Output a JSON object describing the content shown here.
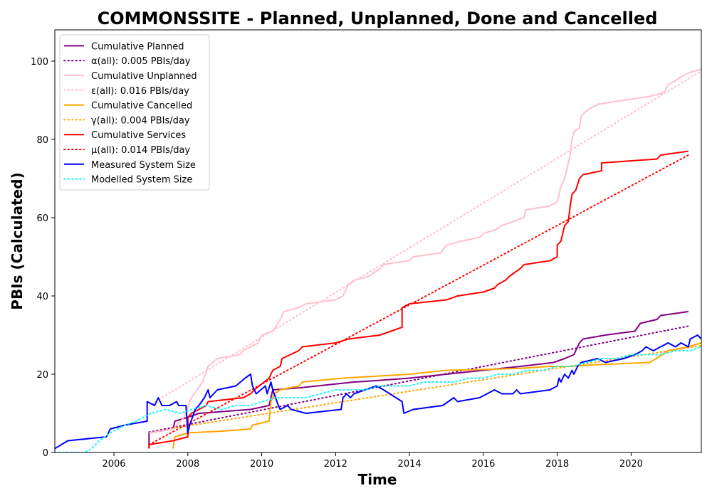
{
  "chart_data": {
    "type": "line",
    "title": "COMMONSSITE - Planned, Unplanned, Done  and Cancelled",
    "xlabel": "Time",
    "ylabel": "PBIs (Calculated)",
    "xlim": [
      2004.4,
      2021.9
    ],
    "ylim": [
      0,
      108
    ],
    "xticks": [
      2006,
      2008,
      2010,
      2012,
      2014,
      2016,
      2018,
      2020
    ],
    "yticks": [
      0,
      20,
      40,
      60,
      80,
      100
    ],
    "legend_position": "upper left",
    "grid": false,
    "series": [
      {
        "name": "Cumulative Planned",
        "color": "#800080",
        "style": "solid",
        "points": [
          [
            2006.95,
            1
          ],
          [
            2006.95,
            5
          ],
          [
            2007.6,
            6
          ],
          [
            2007.65,
            8
          ],
          [
            2008.0,
            9
          ],
          [
            2008.3,
            10
          ],
          [
            2009.0,
            10.5
          ],
          [
            2009.7,
            11
          ],
          [
            2010.2,
            12
          ],
          [
            2010.3,
            16
          ],
          [
            2011.0,
            16.5
          ],
          [
            2012.0,
            17.5
          ],
          [
            2012.5,
            18
          ],
          [
            2013.0,
            18.3
          ],
          [
            2014.0,
            19
          ],
          [
            2015.0,
            20
          ],
          [
            2016.0,
            21
          ],
          [
            2017.0,
            22
          ],
          [
            2017.9,
            23
          ],
          [
            2018.2,
            24
          ],
          [
            2018.45,
            25
          ],
          [
            2018.6,
            28
          ],
          [
            2018.7,
            29
          ],
          [
            2019.3,
            30
          ],
          [
            2020.1,
            31
          ],
          [
            2020.25,
            33
          ],
          [
            2020.7,
            34
          ],
          [
            2020.8,
            35
          ],
          [
            2021.55,
            36
          ]
        ]
      },
      {
        "name": "α(all): 0.005 PBIs/day",
        "color": "#800080",
        "style": "dotted",
        "points": [
          [
            2006.95,
            5.2
          ],
          [
            2021.55,
            32.3
          ]
        ]
      },
      {
        "name": "Cumulative Unplanned",
        "color": "#ffc0cb",
        "style": "solid",
        "points": [
          [
            2006.95,
            5
          ],
          [
            2007.6,
            6
          ],
          [
            2007.9,
            9
          ],
          [
            2008.1,
            14
          ],
          [
            2008.4,
            18
          ],
          [
            2008.55,
            22
          ],
          [
            2008.8,
            24
          ],
          [
            2009.4,
            25
          ],
          [
            2009.5,
            26
          ],
          [
            2009.9,
            28
          ],
          [
            2010.0,
            30
          ],
          [
            2010.3,
            31
          ],
          [
            2010.5,
            34
          ],
          [
            2010.6,
            36
          ],
          [
            2011.0,
            37
          ],
          [
            2011.2,
            38
          ],
          [
            2012.0,
            39
          ],
          [
            2012.2,
            40
          ],
          [
            2012.35,
            43
          ],
          [
            2012.5,
            44
          ],
          [
            2012.9,
            45
          ],
          [
            2013.2,
            47
          ],
          [
            2013.3,
            48
          ],
          [
            2013.6,
            48.5
          ],
          [
            2014.0,
            49
          ],
          [
            2014.1,
            50
          ],
          [
            2014.85,
            51
          ],
          [
            2015.0,
            53
          ],
          [
            2015.4,
            54
          ],
          [
            2015.9,
            55
          ],
          [
            2016.0,
            56
          ],
          [
            2016.35,
            57
          ],
          [
            2016.5,
            58
          ],
          [
            2016.8,
            59
          ],
          [
            2017.1,
            60
          ],
          [
            2017.15,
            62
          ],
          [
            2017.8,
            63
          ],
          [
            2018.0,
            64
          ],
          [
            2018.05,
            66
          ],
          [
            2018.1,
            68
          ],
          [
            2018.2,
            70
          ],
          [
            2018.3,
            74
          ],
          [
            2018.35,
            76
          ],
          [
            2018.4,
            80
          ],
          [
            2018.45,
            82
          ],
          [
            2018.6,
            83
          ],
          [
            2018.65,
            86
          ],
          [
            2018.75,
            87
          ],
          [
            2018.9,
            88
          ],
          [
            2019.0,
            88.5
          ],
          [
            2019.1,
            89
          ],
          [
            2020.5,
            91
          ],
          [
            2020.9,
            92
          ],
          [
            2021.0,
            94
          ],
          [
            2021.2,
            95
          ],
          [
            2021.35,
            96
          ],
          [
            2021.55,
            97
          ],
          [
            2021.9,
            98
          ]
        ]
      },
      {
        "name": "ε(all): 0.016 PBIs/day",
        "color": "#ffc0cb",
        "style": "dotted",
        "points": [
          [
            2006.95,
            12
          ],
          [
            2021.9,
            97.5
          ]
        ]
      },
      {
        "name": "Cumulative Cancelled",
        "color": "#ffa500",
        "style": "solid",
        "points": [
          [
            2007.6,
            1
          ],
          [
            2007.65,
            4
          ],
          [
            2008.0,
            5
          ],
          [
            2009.0,
            5.5
          ],
          [
            2009.7,
            6
          ],
          [
            2009.75,
            7
          ],
          [
            2010.2,
            8
          ],
          [
            2010.25,
            13
          ],
          [
            2010.35,
            15
          ],
          [
            2010.5,
            16
          ],
          [
            2011.0,
            17
          ],
          [
            2011.1,
            18
          ],
          [
            2012.2,
            19
          ],
          [
            2014.0,
            20
          ],
          [
            2015.0,
            21
          ],
          [
            2016.0,
            21.2
          ],
          [
            2017.0,
            21.5
          ],
          [
            2017.8,
            22
          ],
          [
            2018.4,
            22
          ],
          [
            2019.0,
            22.4
          ],
          [
            2020.5,
            23
          ],
          [
            2020.85,
            25
          ],
          [
            2021.0,
            26
          ],
          [
            2021.55,
            27
          ],
          [
            2021.9,
            28
          ]
        ]
      },
      {
        "name": "γ(all): 0.004 PBIs/day",
        "color": "#ffa500",
        "style": "dotted",
        "points": [
          [
            2007.6,
            6.2
          ],
          [
            2021.9,
            27.3
          ]
        ]
      },
      {
        "name": "Cumulative Services",
        "color": "#ff0000",
        "style": "solid",
        "points": [
          [
            2006.95,
            1
          ],
          [
            2006.95,
            2
          ],
          [
            2007.6,
            3
          ],
          [
            2008.0,
            4
          ],
          [
            2008.0,
            9
          ],
          [
            2008.1,
            10
          ],
          [
            2008.5,
            12
          ],
          [
            2008.55,
            13
          ],
          [
            2009.5,
            14
          ],
          [
            2009.7,
            15
          ],
          [
            2009.8,
            16
          ],
          [
            2010.2,
            19
          ],
          [
            2010.3,
            21
          ],
          [
            2010.5,
            22
          ],
          [
            2010.55,
            24
          ],
          [
            2011.0,
            26
          ],
          [
            2011.1,
            27
          ],
          [
            2012.0,
            28
          ],
          [
            2012.35,
            29
          ],
          [
            2013.2,
            30
          ],
          [
            2013.8,
            32
          ],
          [
            2013.8,
            37
          ],
          [
            2014.0,
            38
          ],
          [
            2015.0,
            39
          ],
          [
            2015.3,
            40
          ],
          [
            2016.0,
            41
          ],
          [
            2016.3,
            42
          ],
          [
            2016.4,
            43
          ],
          [
            2016.6,
            44
          ],
          [
            2016.7,
            45
          ],
          [
            2017.0,
            47
          ],
          [
            2017.1,
            48
          ],
          [
            2017.8,
            49
          ],
          [
            2018.0,
            50
          ],
          [
            2018.0,
            53
          ],
          [
            2018.1,
            54
          ],
          [
            2018.2,
            58
          ],
          [
            2018.3,
            59
          ],
          [
            2018.35,
            63
          ],
          [
            2018.4,
            66
          ],
          [
            2018.5,
            67
          ],
          [
            2018.6,
            70
          ],
          [
            2018.7,
            71
          ],
          [
            2019.2,
            72
          ],
          [
            2019.2,
            74
          ],
          [
            2020.7,
            75
          ],
          [
            2020.8,
            76
          ],
          [
            2021.55,
            77
          ]
        ]
      },
      {
        "name": "μ(all): 0.014 PBIs/day",
        "color": "#ff0000",
        "style": "dotted",
        "points": [
          [
            2006.95,
            2
          ],
          [
            2021.55,
            76
          ]
        ]
      },
      {
        "name": "Measured System Size",
        "color": "#0000ff",
        "style": "solid",
        "points": [
          [
            2004.4,
            1
          ],
          [
            2004.75,
            3
          ],
          [
            2005.8,
            4
          ],
          [
            2005.9,
            6
          ],
          [
            2006.3,
            7
          ],
          [
            2006.9,
            8
          ],
          [
            2006.9,
            13
          ],
          [
            2007.1,
            12
          ],
          [
            2007.2,
            14
          ],
          [
            2007.3,
            12
          ],
          [
            2007.5,
            12
          ],
          [
            2007.7,
            13
          ],
          [
            2007.75,
            12
          ],
          [
            2007.95,
            12
          ],
          [
            2008.0,
            5
          ],
          [
            2008.05,
            7
          ],
          [
            2008.2,
            11
          ],
          [
            2008.3,
            12
          ],
          [
            2008.45,
            14
          ],
          [
            2008.55,
            16
          ],
          [
            2008.6,
            14
          ],
          [
            2008.8,
            16
          ],
          [
            2009.3,
            17
          ],
          [
            2009.55,
            19
          ],
          [
            2009.7,
            20
          ],
          [
            2009.75,
            17
          ],
          [
            2009.85,
            15
          ],
          [
            2010.1,
            17
          ],
          [
            2010.15,
            15
          ],
          [
            2010.25,
            18
          ],
          [
            2010.3,
            16
          ],
          [
            2010.45,
            12
          ],
          [
            2010.5,
            11
          ],
          [
            2010.7,
            12
          ],
          [
            2010.8,
            11
          ],
          [
            2011.2,
            10
          ],
          [
            2012.15,
            11
          ],
          [
            2012.2,
            14
          ],
          [
            2012.3,
            15
          ],
          [
            2012.4,
            14
          ],
          [
            2012.5,
            15
          ],
          [
            2013.1,
            17
          ],
          [
            2013.3,
            16
          ],
          [
            2013.8,
            13
          ],
          [
            2013.85,
            10
          ],
          [
            2014.1,
            11
          ],
          [
            2014.9,
            12
          ],
          [
            2015.2,
            14
          ],
          [
            2015.3,
            13
          ],
          [
            2015.9,
            14
          ],
          [
            2016.1,
            15
          ],
          [
            2016.3,
            16
          ],
          [
            2016.5,
            15
          ],
          [
            2016.8,
            15
          ],
          [
            2016.9,
            16
          ],
          [
            2017.0,
            15
          ],
          [
            2017.8,
            16
          ],
          [
            2018.0,
            17
          ],
          [
            2018.05,
            19
          ],
          [
            2018.1,
            18
          ],
          [
            2018.2,
            20
          ],
          [
            2018.3,
            19
          ],
          [
            2018.4,
            21
          ],
          [
            2018.45,
            20
          ],
          [
            2018.55,
            22
          ],
          [
            2018.65,
            23
          ],
          [
            2019.1,
            24
          ],
          [
            2019.3,
            23
          ],
          [
            2019.8,
            24
          ],
          [
            2020.1,
            25
          ],
          [
            2020.3,
            26
          ],
          [
            2020.4,
            27
          ],
          [
            2020.6,
            26
          ],
          [
            2020.8,
            27
          ],
          [
            2021.0,
            28
          ],
          [
            2021.2,
            27
          ],
          [
            2021.35,
            28
          ],
          [
            2021.55,
            27
          ],
          [
            2021.6,
            29
          ],
          [
            2021.8,
            30
          ],
          [
            2021.9,
            29
          ]
        ]
      },
      {
        "name": "Modelled System Size",
        "color": "#00ffff",
        "style": "dotted",
        "points": [
          [
            2004.4,
            0
          ],
          [
            2005.2,
            0
          ],
          [
            2005.4,
            1
          ],
          [
            2005.6,
            3
          ],
          [
            2005.9,
            5
          ],
          [
            2006.3,
            7
          ],
          [
            2006.6,
            8
          ],
          [
            2007.0,
            10
          ],
          [
            2007.4,
            11
          ],
          [
            2007.8,
            10
          ],
          [
            2008.1,
            11
          ],
          [
            2008.5,
            12
          ],
          [
            2008.9,
            11
          ],
          [
            2009.3,
            12
          ],
          [
            2009.7,
            12
          ],
          [
            2010.0,
            13
          ],
          [
            2010.4,
            14
          ],
          [
            2010.8,
            14
          ],
          [
            2011.2,
            14
          ],
          [
            2011.6,
            15
          ],
          [
            2012.0,
            16
          ],
          [
            2012.4,
            16
          ],
          [
            2012.8,
            16
          ],
          [
            2013.2,
            17
          ],
          [
            2013.6,
            17
          ],
          [
            2014.0,
            17
          ],
          [
            2014.4,
            18
          ],
          [
            2014.8,
            18
          ],
          [
            2015.2,
            18
          ],
          [
            2015.6,
            19
          ],
          [
            2016.0,
            19
          ],
          [
            2016.4,
            20
          ],
          [
            2016.8,
            20
          ],
          [
            2017.2,
            21
          ],
          [
            2017.6,
            21
          ],
          [
            2018.0,
            22
          ],
          [
            2018.4,
            22
          ],
          [
            2018.8,
            23
          ],
          [
            2019.2,
            24
          ],
          [
            2019.6,
            24
          ],
          [
            2020.0,
            25
          ],
          [
            2020.4,
            25
          ],
          [
            2020.8,
            25
          ],
          [
            2021.2,
            26
          ],
          [
            2021.6,
            26
          ],
          [
            2021.9,
            27
          ]
        ]
      }
    ]
  }
}
